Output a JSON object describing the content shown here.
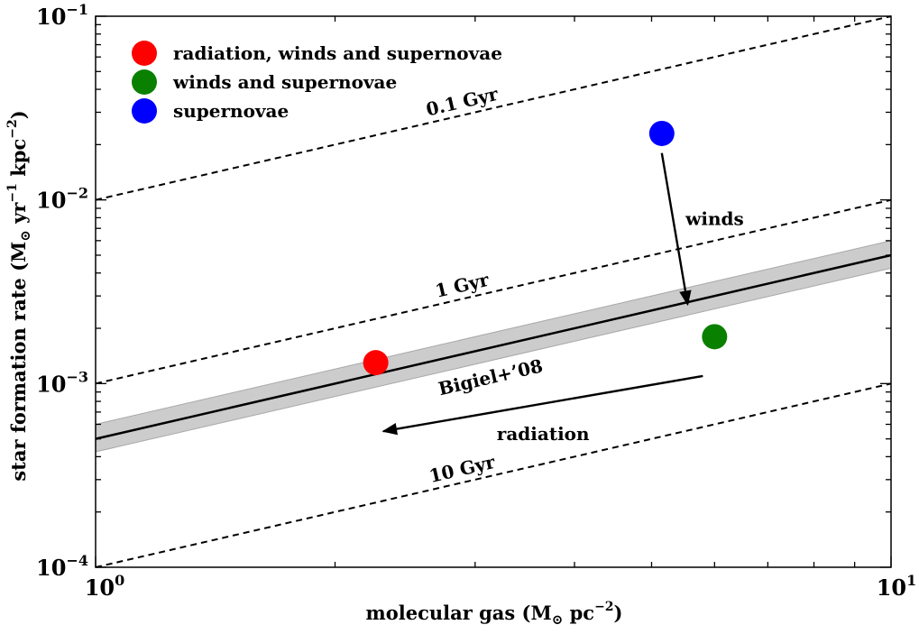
{
  "chart_data": {
    "type": "scatter",
    "xscale": "log",
    "yscale": "log",
    "xlim": [
      1,
      10
    ],
    "ylim": [
      0.0001,
      0.1
    ],
    "xlabel": {
      "main": "molecular gas (M",
      "sub": "⊙",
      "unit": " pc",
      "exp": "−2",
      "close": ")"
    },
    "ylabel": {
      "main": "star formation rate (M",
      "sub": "⊙",
      "unit1": " yr",
      "exp1": "−1",
      "unit2": " kpc",
      "exp2": "−2",
      "close": ")"
    },
    "x_ticks": [
      {
        "value": 1,
        "base": "10",
        "exp": "0"
      },
      {
        "value": 10,
        "base": "10",
        "exp": "1"
      }
    ],
    "y_ticks": [
      {
        "value": 0.0001,
        "base": "10",
        "exp": "−4"
      },
      {
        "value": 0.001,
        "base": "10",
        "exp": "−3"
      },
      {
        "value": 0.01,
        "base": "10",
        "exp": "−2"
      },
      {
        "value": 0.1,
        "base": "10",
        "exp": "−1"
      }
    ],
    "points": [
      {
        "name": "radiation, winds and supernovae",
        "x": 2.25,
        "y": 0.0013,
        "color": "#ff0000"
      },
      {
        "name": "winds and supernovae",
        "x": 6.0,
        "y": 0.0018,
        "color": "#0a8000"
      },
      {
        "name": "supernovae",
        "x": 5.15,
        "y": 0.023,
        "color": "#0000ff"
      }
    ],
    "depletion_lines": [
      {
        "label": "0.1 Gyr",
        "coef": 0.01,
        "label_x": 2.9
      },
      {
        "label": "1 Gyr",
        "coef": 0.001,
        "label_x": 2.9
      },
      {
        "label": "10 Gyr",
        "coef": 0.0001,
        "label_x": 2.9
      }
    ],
    "relation": {
      "label": "Bigiel+’08",
      "x": [
        1,
        10
      ],
      "y": [
        0.0005,
        0.005
      ],
      "band_lower_factor": 0.85,
      "band_upper_factor": 1.2,
      "label_x": 3.15
    },
    "arrows": [
      {
        "label": "winds",
        "from": [
          5.15,
          0.018
        ],
        "to": [
          5.55,
          0.0027
        ]
      },
      {
        "label": "radiation",
        "from": [
          5.8,
          0.0011
        ],
        "to": [
          2.3,
          0.00055
        ]
      }
    ],
    "legend": {
      "placement": "top-left"
    },
    "grid": false
  }
}
